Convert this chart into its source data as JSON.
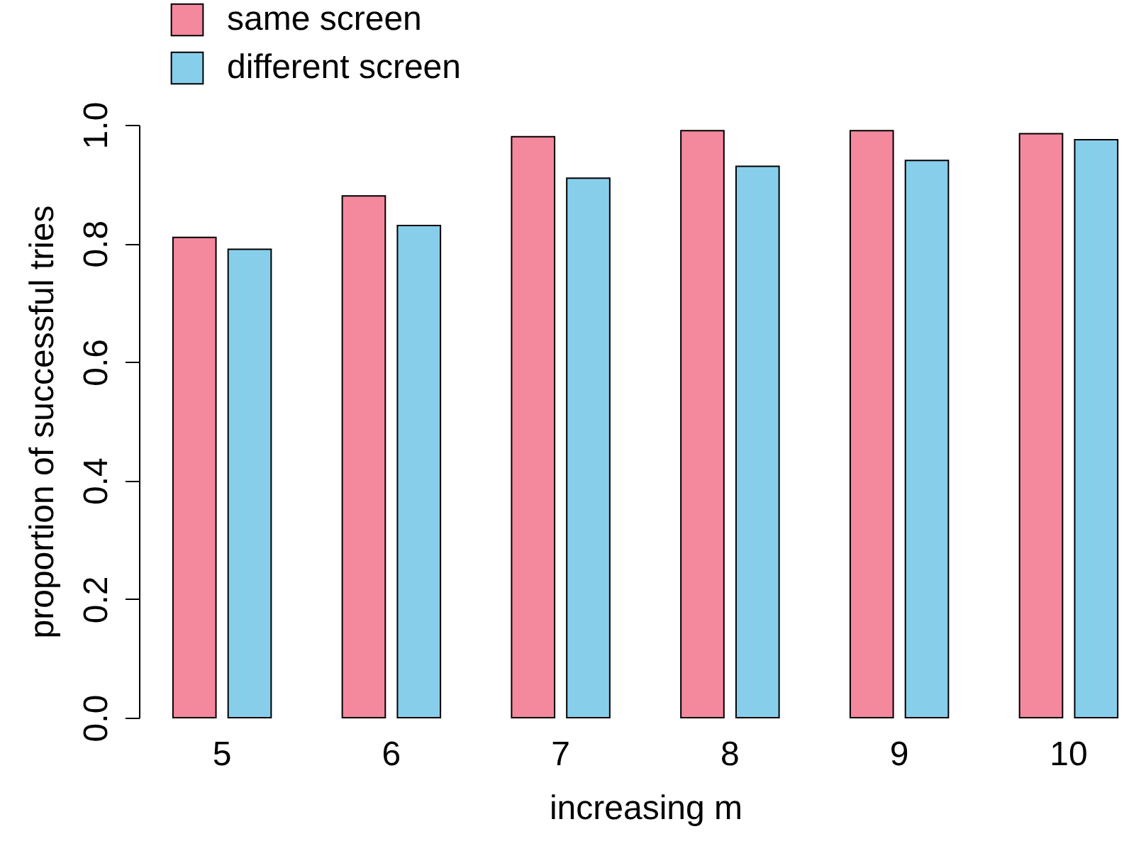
{
  "chart_data": {
    "type": "bar",
    "xlabel": "increasing m",
    "ylabel": "proportion of successful tries",
    "categories": [
      "5",
      "6",
      "7",
      "8",
      "9",
      "10"
    ],
    "series": [
      {
        "name": "same screen",
        "color": "#f4889d",
        "values": [
          0.81,
          0.88,
          0.98,
          0.99,
          0.99,
          0.985
        ]
      },
      {
        "name": "different screen",
        "color": "#87ceeb",
        "values": [
          0.79,
          0.83,
          0.91,
          0.93,
          0.94,
          0.975
        ]
      }
    ],
    "ylim": [
      0,
      1
    ],
    "yticks": [
      {
        "value": 0,
        "label": "0.0"
      },
      {
        "value": 0.2,
        "label": "0.2"
      },
      {
        "value": 0.4,
        "label": "0.4"
      },
      {
        "value": 0.6,
        "label": "0.6"
      },
      {
        "value": 0.8,
        "label": "0.8"
      },
      {
        "value": 1,
        "label": "1.0"
      }
    ],
    "legend": "top left",
    "grid": false
  }
}
